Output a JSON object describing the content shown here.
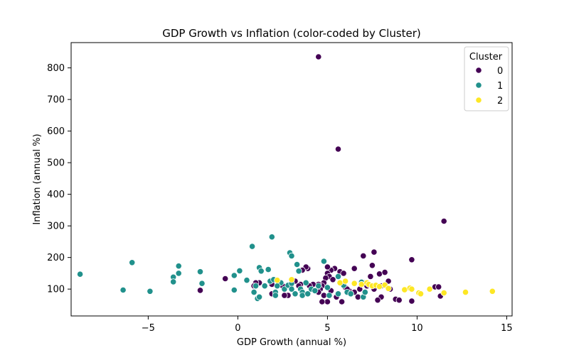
{
  "chart_data": {
    "type": "scatter",
    "title": "GDP Growth vs Inflation (color-coded by Cluster)",
    "xlabel": "GDP Growth (annual %)",
    "ylabel": "Inflation (annual %)",
    "xlim": [
      -9.3,
      15.3
    ],
    "ylim": [
      15,
      880
    ],
    "xticks": [
      -5,
      0,
      5,
      10,
      15
    ],
    "yticks": [
      100,
      200,
      300,
      400,
      500,
      600,
      700,
      800
    ],
    "xtick_labels": [
      "−5",
      "0",
      "5",
      "10",
      "15"
    ],
    "ytick_labels": [
      "100",
      "200",
      "300",
      "400",
      "500",
      "600",
      "700",
      "800"
    ],
    "grid": false,
    "legend": {
      "title": "Cluster",
      "placement": "top-right"
    },
    "series": [
      {
        "name": "0",
        "color": "#440154",
        "points": [
          [
            4.5,
            835
          ],
          [
            5.6,
            543
          ],
          [
            11.5,
            315
          ],
          [
            9.7,
            193
          ],
          [
            7.0,
            205
          ],
          [
            7.6,
            217
          ],
          [
            7.5,
            175
          ],
          [
            5.7,
            155
          ],
          [
            5.9,
            150
          ],
          [
            6.5,
            165
          ],
          [
            7.4,
            140
          ],
          [
            7.9,
            148
          ],
          [
            8.2,
            153
          ],
          [
            8.0,
            110
          ],
          [
            8.4,
            125
          ],
          [
            8.5,
            100
          ],
          [
            8.8,
            68
          ],
          [
            9.7,
            62
          ],
          [
            11.0,
            107
          ],
          [
            11.2,
            107
          ],
          [
            11.3,
            78
          ],
          [
            8.0,
            75
          ],
          [
            7.8,
            65
          ],
          [
            7.6,
            100
          ],
          [
            7.0,
            120
          ],
          [
            6.8,
            100
          ],
          [
            6.5,
            90
          ],
          [
            6.2,
            95
          ],
          [
            6.0,
            105
          ],
          [
            5.8,
            60
          ],
          [
            5.5,
            75
          ],
          [
            5.4,
            165
          ],
          [
            5.2,
            160
          ],
          [
            5.0,
            170
          ],
          [
            5.0,
            150
          ],
          [
            5.1,
            140
          ],
          [
            4.9,
            135
          ],
          [
            4.8,
            120
          ],
          [
            4.7,
            110
          ],
          [
            4.6,
            100
          ],
          [
            4.5,
            90
          ],
          [
            4.8,
            80
          ],
          [
            5.0,
            60
          ],
          [
            4.7,
            60
          ],
          [
            4.5,
            115
          ],
          [
            4.2,
            115
          ],
          [
            4.0,
            110
          ],
          [
            3.9,
            165
          ],
          [
            3.8,
            170
          ],
          [
            3.6,
            160
          ],
          [
            3.5,
            115
          ],
          [
            3.4,
            110
          ],
          [
            3.2,
            125
          ],
          [
            3.0,
            115
          ],
          [
            2.8,
            80
          ],
          [
            2.6,
            80
          ],
          [
            2.5,
            110
          ],
          [
            1.9,
            85
          ],
          [
            1.9,
            115
          ],
          [
            1.2,
            120
          ],
          [
            1.0,
            120
          ],
          [
            0.9,
            110
          ],
          [
            -0.7,
            133
          ],
          [
            -2.1,
            96
          ],
          [
            6.1,
            100
          ],
          [
            6.3,
            85
          ],
          [
            5.2,
            95
          ],
          [
            5.3,
            130
          ],
          [
            7.2,
            110
          ],
          [
            6.7,
            75
          ],
          [
            8.5,
            100
          ],
          [
            9.0,
            65
          ]
        ]
      },
      {
        "name": "1",
        "color": "#21918c",
        "points": [
          [
            -8.8,
            147
          ],
          [
            -6.4,
            97
          ],
          [
            -5.9,
            184
          ],
          [
            -4.9,
            93
          ],
          [
            -3.6,
            138
          ],
          [
            -3.6,
            123
          ],
          [
            -3.3,
            173
          ],
          [
            -3.3,
            150
          ],
          [
            -2.1,
            155
          ],
          [
            -2.0,
            118
          ],
          [
            -0.2,
            143
          ],
          [
            -0.2,
            97
          ],
          [
            0.1,
            158
          ],
          [
            0.5,
            128
          ],
          [
            0.8,
            235
          ],
          [
            0.9,
            90
          ],
          [
            1.0,
            110
          ],
          [
            1.1,
            70
          ],
          [
            1.2,
            75
          ],
          [
            1.2,
            168
          ],
          [
            1.3,
            157
          ],
          [
            1.5,
            110
          ],
          [
            1.7,
            162
          ],
          [
            1.8,
            125
          ],
          [
            1.9,
            265
          ],
          [
            2.0,
            130
          ],
          [
            2.1,
            90
          ],
          [
            2.1,
            80
          ],
          [
            2.4,
            120
          ],
          [
            2.6,
            100
          ],
          [
            2.8,
            112
          ],
          [
            2.9,
            215
          ],
          [
            3.0,
            205
          ],
          [
            3.0,
            118
          ],
          [
            3.0,
            100
          ],
          [
            3.2,
            85
          ],
          [
            3.3,
            178
          ],
          [
            3.4,
            157
          ],
          [
            3.5,
            100
          ],
          [
            3.6,
            90
          ],
          [
            3.6,
            80
          ],
          [
            3.8,
            120
          ],
          [
            3.9,
            85
          ],
          [
            4.1,
            100
          ],
          [
            4.3,
            95
          ],
          [
            4.5,
            110
          ],
          [
            4.8,
            188
          ],
          [
            5.0,
            105
          ],
          [
            5.1,
            80
          ],
          [
            5.6,
            140
          ],
          [
            5.6,
            85
          ],
          [
            5.9,
            112
          ],
          [
            6.1,
            90
          ],
          [
            6.3,
            85
          ],
          [
            6.9,
            122
          ],
          [
            7.0,
            75
          ],
          [
            7.1,
            90
          ],
          [
            2.2,
            110
          ]
        ]
      },
      {
        "name": "2",
        "color": "#fde725",
        "points": [
          [
            2.2,
            128
          ],
          [
            3.0,
            130
          ],
          [
            5.7,
            120
          ],
          [
            6.0,
            125
          ],
          [
            6.5,
            118
          ],
          [
            6.9,
            115
          ],
          [
            7.2,
            120
          ],
          [
            7.3,
            115
          ],
          [
            7.5,
            110
          ],
          [
            7.7,
            112
          ],
          [
            7.9,
            108
          ],
          [
            8.2,
            113
          ],
          [
            8.4,
            102
          ],
          [
            9.3,
            98
          ],
          [
            9.6,
            103
          ],
          [
            9.7,
            100
          ],
          [
            10.1,
            88
          ],
          [
            10.2,
            85
          ],
          [
            10.7,
            100
          ],
          [
            11.5,
            88
          ],
          [
            12.7,
            90
          ],
          [
            14.2,
            93
          ]
        ]
      }
    ]
  }
}
